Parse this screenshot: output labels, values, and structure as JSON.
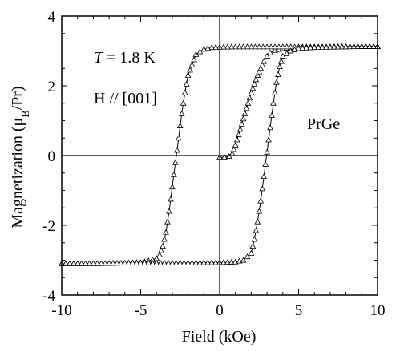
{
  "chart_data": {
    "type": "line",
    "xlabel": "Field (kOe)",
    "ylabel_main": "Magnetization (",
    "ylabel_mu": "μ",
    "ylabel_sub": "B",
    "ylabel_tail": "/Pr)",
    "xlim": [
      -10,
      10
    ],
    "ylim": [
      -4,
      4
    ],
    "xticks": [
      -10,
      -5,
      0,
      5,
      10
    ],
    "yticks": [
      -4,
      -2,
      0,
      2,
      4
    ],
    "xtick_labels": [
      "-10",
      "-5",
      "0",
      "5",
      "10"
    ],
    "ytick_labels": [
      "-4",
      "-2",
      "0",
      "2",
      "4"
    ],
    "annotations": {
      "temp_symbol": "T",
      "temp_value": " = 1.8 K",
      "field_dir": "H // [001]",
      "sample": "PrGe"
    },
    "series": [
      {
        "marker": "open-triangle",
        "x": [
          0.0,
          0.2,
          0.4,
          0.6,
          0.8,
          1.0,
          1.2,
          1.4,
          1.6,
          1.8,
          2.0,
          2.2,
          2.4,
          2.6,
          2.8,
          3.0,
          3.2,
          3.5,
          4.0,
          4.5,
          5.0,
          6.0,
          7.0,
          8.0,
          9.0,
          10.0
        ],
        "y": [
          -0.05,
          -0.05,
          -0.04,
          -0.02,
          0.05,
          0.3,
          0.6,
          0.9,
          1.2,
          1.5,
          1.8,
          2.05,
          2.3,
          2.5,
          2.7,
          2.85,
          2.95,
          3.02,
          3.07,
          3.09,
          3.1,
          3.11,
          3.12,
          3.12,
          3.13,
          3.13
        ]
      },
      {
        "marker": "open-triangle",
        "x": [
          10.0,
          9.0,
          8.0,
          7.0,
          6.0,
          5.0,
          4.0,
          3.0,
          2.0,
          1.0,
          0.0,
          -0.5,
          -1.0,
          -1.5,
          -2.0,
          -2.2,
          -2.4,
          -2.6,
          -2.8,
          -3.0,
          -3.2,
          -3.4,
          -3.6,
          -3.8,
          -4.0,
          -4.5,
          -5.0,
          -6.0,
          -7.0,
          -8.0,
          -9.0,
          -10.0
        ],
        "y": [
          3.13,
          3.13,
          3.13,
          3.12,
          3.12,
          3.12,
          3.12,
          3.12,
          3.12,
          3.12,
          3.11,
          3.1,
          3.05,
          2.9,
          2.3,
          1.8,
          1.2,
          0.5,
          -0.2,
          -0.9,
          -1.6,
          -2.2,
          -2.6,
          -2.85,
          -2.95,
          -3.02,
          -3.06,
          -3.08,
          -3.09,
          -3.1,
          -3.1,
          -3.1
        ]
      },
      {
        "marker": "open-triangle",
        "x": [
          -10.0,
          -9.0,
          -8.0,
          -7.0,
          -6.0,
          -5.0,
          -4.0,
          -3.0,
          -2.0,
          -1.0,
          0.0,
          1.0,
          1.5,
          2.0,
          2.2,
          2.4,
          2.6,
          2.8,
          3.0,
          3.2,
          3.4,
          3.6,
          3.8,
          4.0,
          4.5,
          5.0,
          6.0,
          7.0,
          8.0,
          9.0,
          10.0
        ],
        "y": [
          -3.1,
          -3.1,
          -3.09,
          -3.09,
          -3.08,
          -3.08,
          -3.08,
          -3.08,
          -3.08,
          -3.07,
          -3.07,
          -3.05,
          -3.0,
          -2.8,
          -2.4,
          -1.9,
          -1.3,
          -0.6,
          0.1,
          0.8,
          1.5,
          2.1,
          2.55,
          2.85,
          3.0,
          3.07,
          3.1,
          3.11,
          3.12,
          3.13,
          3.13
        ]
      }
    ]
  }
}
